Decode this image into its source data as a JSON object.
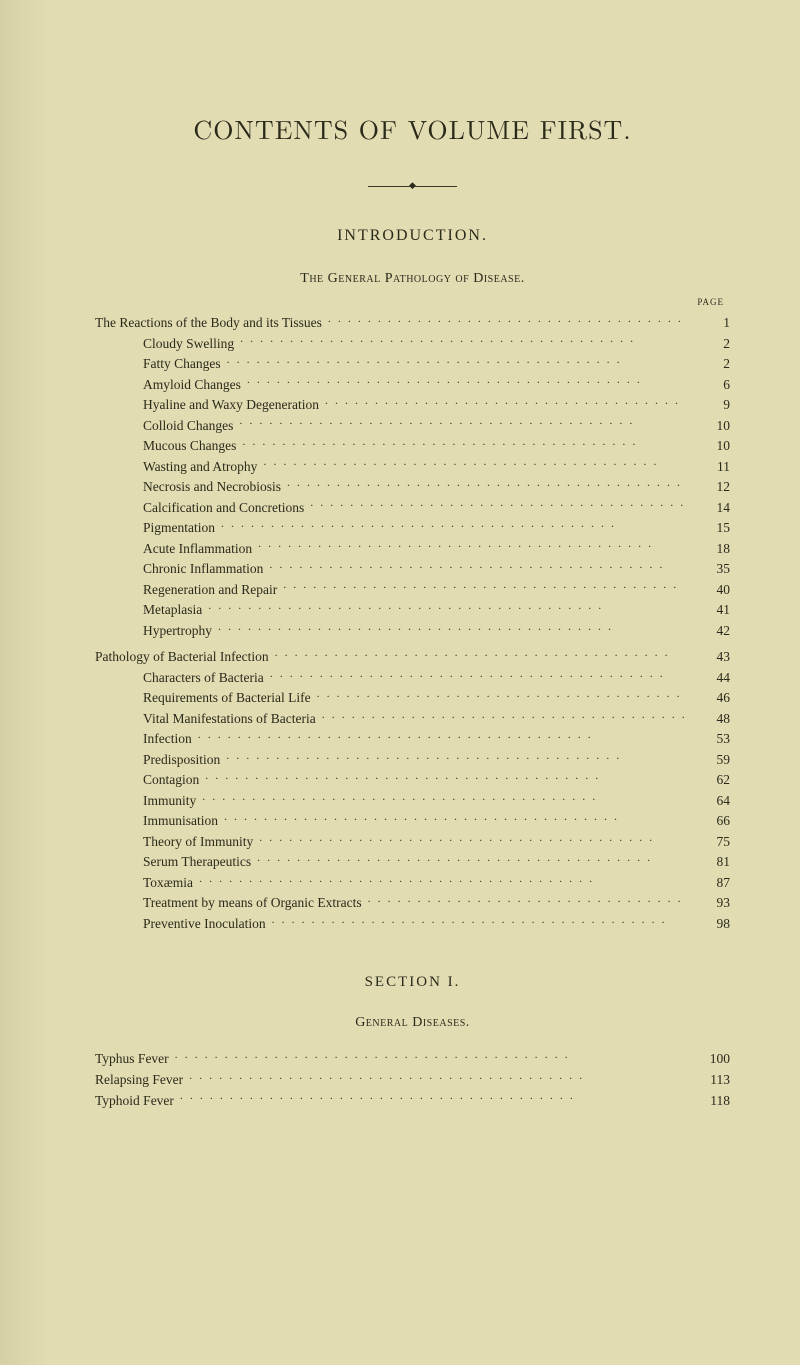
{
  "title": "CONTENTS OF VOLUME FIRST.",
  "intro": "INTRODUCTION.",
  "subhead": "The General Pathology of Disease.",
  "page_label": "PAGE",
  "section1": {
    "num": "SECTION I.",
    "sub": "General Diseases."
  },
  "toc_block_a": [
    {
      "label": "The Reactions of the Body and its Tissues",
      "page": "1",
      "indent": 0
    },
    {
      "label": "Cloudy Swelling",
      "page": "2",
      "indent": 1
    },
    {
      "label": "Fatty Changes",
      "page": "2",
      "indent": 1
    },
    {
      "label": "Amyloid Changes",
      "page": "6",
      "indent": 1
    },
    {
      "label": "Hyaline and Waxy Degeneration",
      "page": "9",
      "indent": 1
    },
    {
      "label": "Colloid Changes",
      "page": "10",
      "indent": 1
    },
    {
      "label": "Mucous Changes",
      "page": "10",
      "indent": 1
    },
    {
      "label": "Wasting and Atrophy",
      "page": "11",
      "indent": 1
    },
    {
      "label": "Necrosis and Necrobiosis",
      "page": "12",
      "indent": 1
    },
    {
      "label": "Calcification and Concretions",
      "page": "14",
      "indent": 1
    },
    {
      "label": "Pigmentation",
      "page": "15",
      "indent": 1
    },
    {
      "label": "Acute Inflammation",
      "page": "18",
      "indent": 1
    },
    {
      "label": "Chronic Inflammation",
      "page": "35",
      "indent": 1
    },
    {
      "label": "Regeneration and Repair",
      "page": "40",
      "indent": 1
    },
    {
      "label": "Metaplasia",
      "page": "41",
      "indent": 1
    },
    {
      "label": "Hypertrophy",
      "page": "42",
      "indent": 1
    }
  ],
  "toc_block_b": [
    {
      "label": "Pathology of Bacterial Infection",
      "page": "43",
      "indent": 0
    },
    {
      "label": "Characters of Bacteria",
      "page": "44",
      "indent": 1
    },
    {
      "label": "Requirements of Bacterial Life",
      "page": "46",
      "indent": 1
    },
    {
      "label": "Vital Manifestations of Bacteria",
      "page": "48",
      "indent": 1
    },
    {
      "label": "Infection",
      "page": "53",
      "indent": 1
    },
    {
      "label": "Predisposition",
      "page": "59",
      "indent": 1
    },
    {
      "label": "Contagion",
      "page": "62",
      "indent": 1
    },
    {
      "label": "Immunity",
      "page": "64",
      "indent": 1
    },
    {
      "label": "Immunisation",
      "page": "66",
      "indent": 1
    },
    {
      "label": "Theory of Immunity",
      "page": "75",
      "indent": 1
    },
    {
      "label": "Serum Therapeutics",
      "page": "81",
      "indent": 1
    },
    {
      "label": "Toxæmia",
      "page": "87",
      "indent": 1
    },
    {
      "label": "Treatment by means of Organic Extracts",
      "page": "93",
      "indent": 1
    },
    {
      "label": "Preventive Inoculation",
      "page": "98",
      "indent": 1
    }
  ],
  "toc_block_c": [
    {
      "label": "Typhus Fever",
      "page": "100",
      "indent": 0
    },
    {
      "label": "Relapsing Fever",
      "page": "113",
      "indent": 0
    },
    {
      "label": "Typhoid Fever",
      "page": "118",
      "indent": 0
    }
  ]
}
